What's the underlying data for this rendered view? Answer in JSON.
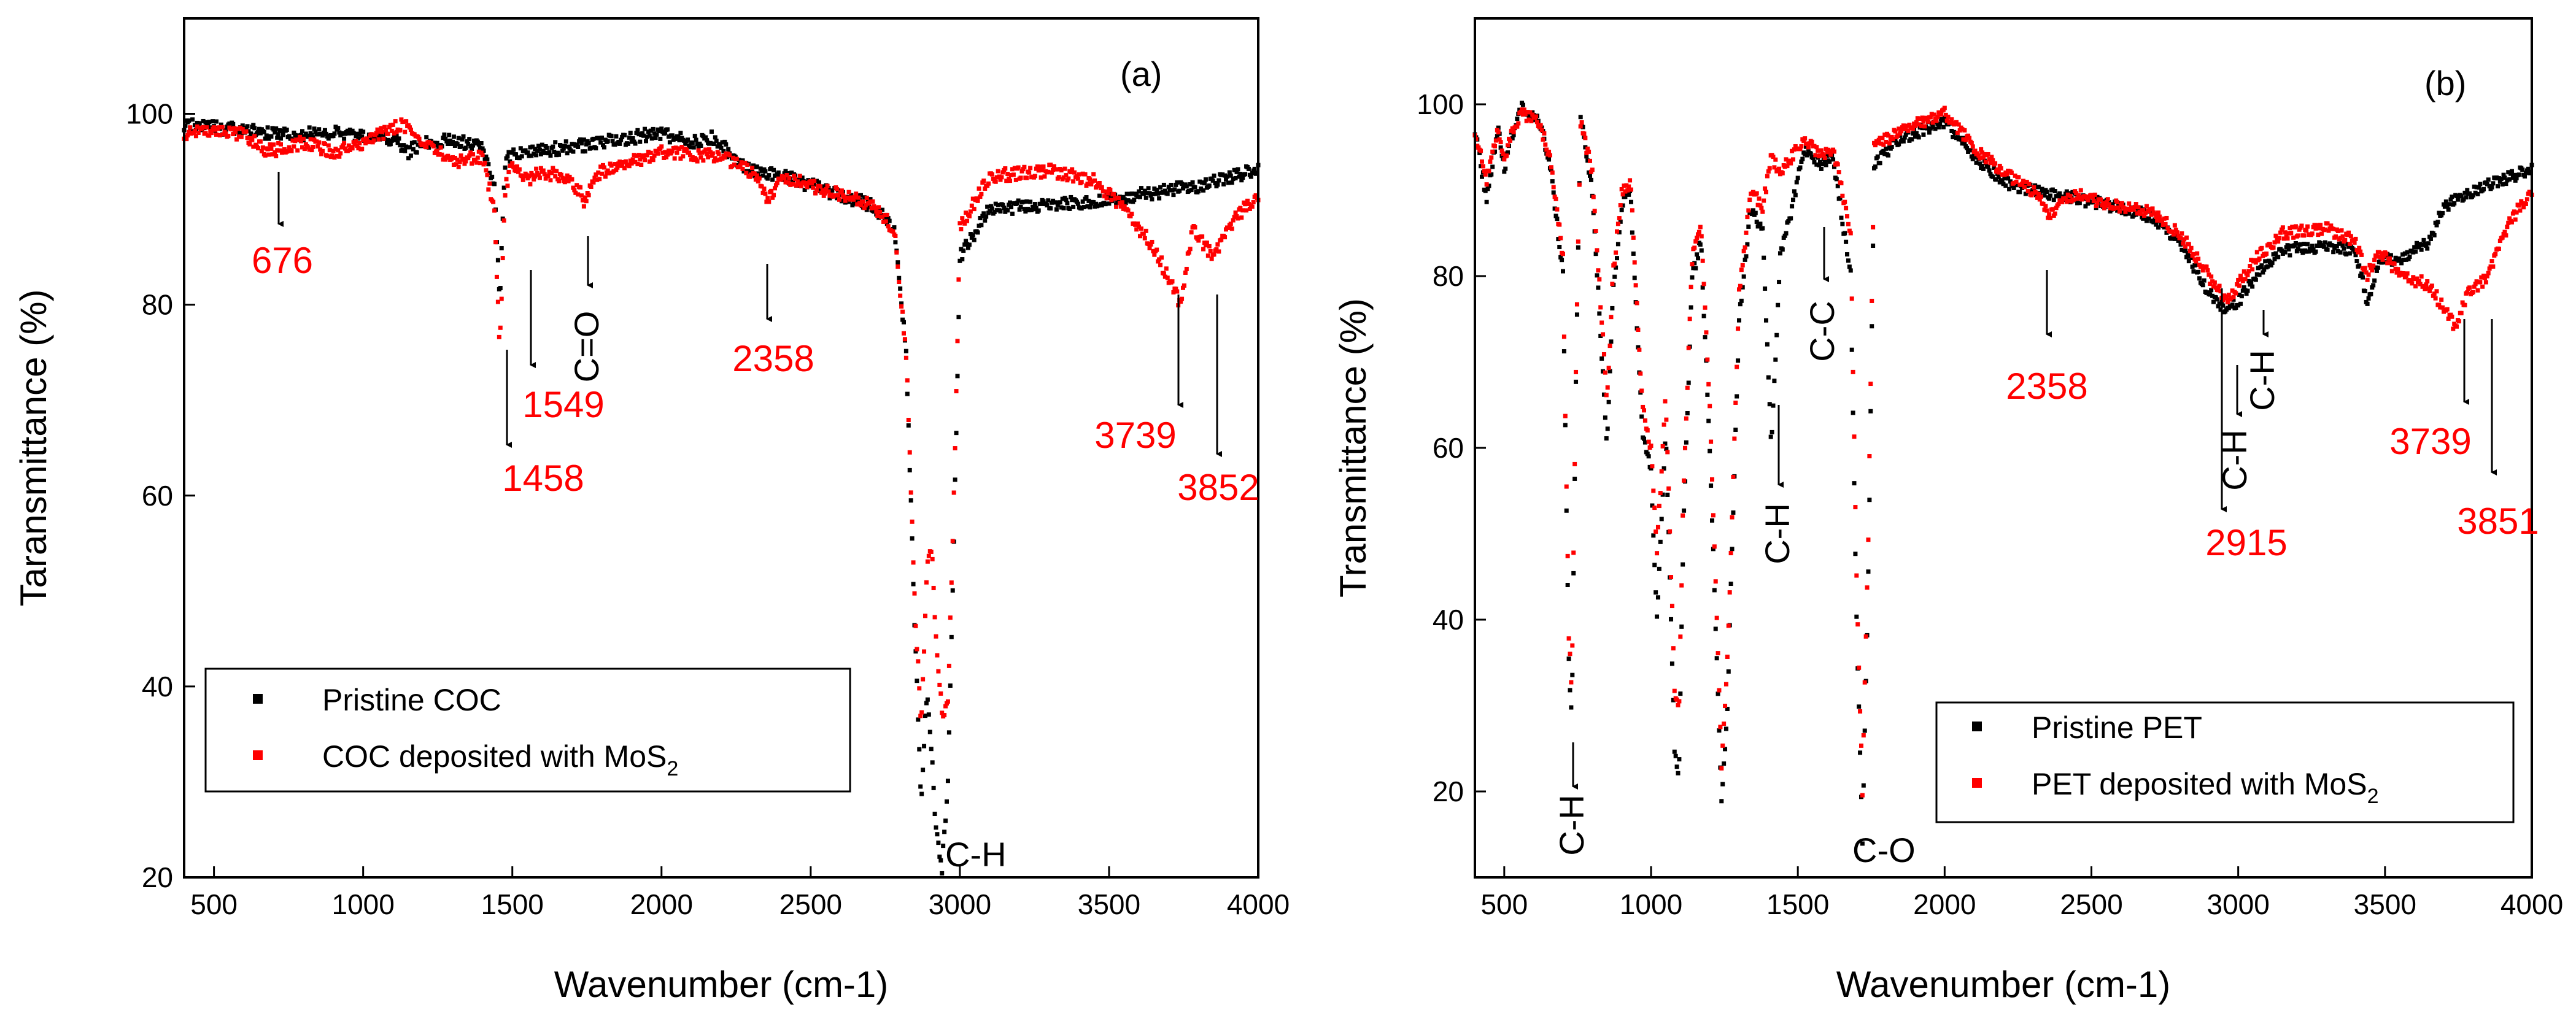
{
  "chart_data": [
    {
      "type": "scatter",
      "panel_label": "(a)",
      "xlabel": "Wavenumber (cm-1)",
      "ylabel": "Taransmittance (%)",
      "xlim": [
        400,
        4000
      ],
      "ylim": [
        20,
        110
      ],
      "xticks": [
        500,
        1000,
        1500,
        2000,
        2500,
        3000,
        3500,
        4000
      ],
      "yticks": [
        20,
        40,
        60,
        80,
        100
      ],
      "legend_position": "bottom-left",
      "series": [
        {
          "name": "Pristine COC",
          "color": "#000000",
          "anchors": [
            [
              400,
              98.8
            ],
            [
              600,
              98.3
            ],
            [
              700,
              97.8
            ],
            [
              900,
              98
            ],
            [
              1000,
              97.5
            ],
            [
              1100,
              97.3
            ],
            [
              1150,
              96
            ],
            [
              1200,
              97
            ],
            [
              1300,
              97.2
            ],
            [
              1400,
              96.5
            ],
            [
              1440,
              92
            ],
            [
              1458,
              80
            ],
            [
              1475,
              95
            ],
            [
              1500,
              96
            ],
            [
              1700,
              96.5
            ],
            [
              1800,
              97
            ],
            [
              2000,
              98
            ],
            [
              2100,
              97
            ],
            [
              2170,
              97.5
            ],
            [
              2300,
              94
            ],
            [
              2400,
              93.5
            ],
            [
              2500,
              92.5
            ],
            [
              2600,
              91.5
            ],
            [
              2700,
              90.5
            ],
            [
              2780,
              88
            ],
            [
              2820,
              75
            ],
            [
              2850,
              45
            ],
            [
              2870,
              28
            ],
            [
              2890,
              40
            ],
            [
              2905,
              33
            ],
            [
              2920,
              25
            ],
            [
              2940,
              21
            ],
            [
              2960,
              30
            ],
            [
              2980,
              55
            ],
            [
              3000,
              85
            ],
            [
              3100,
              90
            ],
            [
              3300,
              90.5
            ],
            [
              3500,
              91
            ],
            [
              3700,
              92
            ],
            [
              3800,
              92.5
            ],
            [
              4000,
              94.2
            ]
          ]
        },
        {
          "name": "COC deposited with MoS",
          "name_sub": "2",
          "color": "#ff0000",
          "anchors": [
            [
              400,
              98
            ],
            [
              600,
              98
            ],
            [
              676,
              96
            ],
            [
              800,
              97
            ],
            [
              900,
              96
            ],
            [
              1000,
              97
            ],
            [
              1100,
              98.5
            ],
            [
              1130,
              99
            ],
            [
              1200,
              97
            ],
            [
              1300,
              95
            ],
            [
              1400,
              95.5
            ],
            [
              1440,
              90
            ],
            [
              1458,
              75
            ],
            [
              1475,
              92
            ],
            [
              1500,
              95
            ],
            [
              1549,
              93
            ],
            [
              1600,
              94
            ],
            [
              1700,
              93
            ],
            [
              1740,
              91
            ],
            [
              1800,
              94
            ],
            [
              2000,
              96
            ],
            [
              2200,
              95.5
            ],
            [
              2300,
              94
            ],
            [
              2358,
              91
            ],
            [
              2400,
              93.5
            ],
            [
              2500,
              92.5
            ],
            [
              2600,
              91.5
            ],
            [
              2700,
              90.5
            ],
            [
              2780,
              88
            ],
            [
              2820,
              75
            ],
            [
              2850,
              48
            ],
            [
              2870,
              36
            ],
            [
              2890,
              52
            ],
            [
              2905,
              55
            ],
            [
              2920,
              45
            ],
            [
              2940,
              37
            ],
            [
              2960,
              38
            ],
            [
              2980,
              60
            ],
            [
              3000,
              88
            ],
            [
              3100,
              93.5
            ],
            [
              3300,
              94
            ],
            [
              3450,
              93
            ],
            [
              3550,
              90
            ],
            [
              3650,
              86
            ],
            [
              3739,
              80
            ],
            [
              3780,
              88
            ],
            [
              3852,
              85
            ],
            [
              3920,
              89
            ],
            [
              4000,
              91.5
            ]
          ]
        }
      ],
      "annotations": [
        {
          "text": "676",
          "x": 676,
          "color": "#ff0000"
        },
        {
          "text": "1458",
          "x": 1458,
          "color": "#ff0000"
        },
        {
          "text": "1549",
          "x": 1549,
          "color": "#ff0000"
        },
        {
          "text": "C=O",
          "x": 1740,
          "color": "#000000",
          "rotated": true
        },
        {
          "text": "2358",
          "x": 2358,
          "color": "#ff0000"
        },
        {
          "text": "C-H",
          "x": 2960,
          "color": "#000000"
        },
        {
          "text": "3739",
          "x": 3739,
          "color": "#ff0000"
        },
        {
          "text": "3852",
          "x": 3852,
          "color": "#ff0000"
        }
      ]
    },
    {
      "type": "scatter",
      "panel_label": "(b)",
      "xlabel": "Wavenumber (cm-1)",
      "ylabel": "Transmittance (%)",
      "xlim": [
        400,
        4000
      ],
      "ylim": [
        10,
        110
      ],
      "xticks": [
        500,
        1000,
        1500,
        2000,
        2500,
        3000,
        3500,
        4000
      ],
      "yticks": [
        20,
        40,
        60,
        80,
        100
      ],
      "legend_position": "bottom-right",
      "series": [
        {
          "name": "Pristine PET",
          "color": "#000000",
          "anchors": [
            [
              400,
              97
            ],
            [
              440,
              89
            ],
            [
              480,
              97
            ],
            [
              500,
              92
            ],
            [
              520,
              96
            ],
            [
              560,
              99.5
            ],
            [
              620,
              98
            ],
            [
              660,
              92
            ],
            [
              700,
              80
            ],
            [
              720,
              35
            ],
            [
              730,
              28
            ],
            [
              745,
              70
            ],
            [
              760,
              99
            ],
            [
              800,
              90
            ],
            [
              850,
              60
            ],
            [
              870,
              78
            ],
            [
              900,
              88
            ],
            [
              930,
              90
            ],
            [
              950,
              75
            ],
            [
              970,
              62
            ],
            [
              1000,
              57
            ],
            [
              1020,
              40
            ],
            [
              1050,
              62
            ],
            [
              1080,
              25
            ],
            [
              1095,
              22
            ],
            [
              1110,
              50
            ],
            [
              1140,
              80
            ],
            [
              1170,
              84
            ],
            [
              1200,
              60
            ],
            [
              1240,
              19
            ],
            [
              1260,
              30
            ],
            [
              1300,
              75
            ],
            [
              1340,
              88
            ],
            [
              1380,
              85
            ],
            [
              1410,
              60
            ],
            [
              1440,
              82
            ],
            [
              1480,
              88
            ],
            [
              1520,
              95
            ],
            [
              1580,
              93
            ],
            [
              1620,
              94
            ],
            [
              1680,
              80
            ],
            [
              1700,
              40
            ],
            [
              1720,
              14
            ],
            [
              1740,
              45
            ],
            [
              1760,
              93
            ],
            [
              1850,
              96
            ],
            [
              2000,
              98
            ],
            [
              2050,
              96
            ],
            [
              2100,
              94
            ],
            [
              2200,
              91
            ],
            [
              2300,
              90
            ],
            [
              2358,
              89.5
            ],
            [
              2450,
              89
            ],
            [
              2600,
              88
            ],
            [
              2700,
              87
            ],
            [
              2800,
              84
            ],
            [
              2900,
              78
            ],
            [
              2960,
              76
            ],
            [
              3000,
              77
            ],
            [
              3060,
              80
            ],
            [
              3150,
              83
            ],
            [
              3300,
              83.5
            ],
            [
              3400,
              83
            ],
            [
              3440,
              77
            ],
            [
              3480,
              82
            ],
            [
              3550,
              82
            ],
            [
              3650,
              84
            ],
            [
              3700,
              88
            ],
            [
              3800,
              90
            ],
            [
              4000,
              92.5
            ]
          ]
        },
        {
          "name": "PET deposited with MoS",
          "name_sub": "2",
          "color": "#ff0000",
          "anchors": [
            [
              400,
              97
            ],
            [
              440,
              91
            ],
            [
              480,
              97
            ],
            [
              500,
              93
            ],
            [
              520,
              96
            ],
            [
              560,
              99
            ],
            [
              620,
              98
            ],
            [
              660,
              93
            ],
            [
              700,
              82
            ],
            [
              720,
              38
            ],
            [
              730,
              32
            ],
            [
              745,
              72
            ],
            [
              760,
              98
            ],
            [
              800,
              92
            ],
            [
              850,
              65
            ],
            [
              870,
              80
            ],
            [
              900,
              90
            ],
            [
              930,
              91
            ],
            [
              950,
              78
            ],
            [
              970,
              65
            ],
            [
              1000,
              60
            ],
            [
              1020,
              48
            ],
            [
              1050,
              66
            ],
            [
              1080,
              32
            ],
            [
              1095,
              29
            ],
            [
              1110,
              55
            ],
            [
              1140,
              82
            ],
            [
              1170,
              86
            ],
            [
              1200,
              65
            ],
            [
              1240,
              23
            ],
            [
              1260,
              35
            ],
            [
              1300,
              78
            ],
            [
              1340,
              90
            ],
            [
              1380,
              88
            ],
            [
              1410,
              94
            ],
            [
              1440,
              92
            ],
            [
              1480,
              94
            ],
            [
              1520,
              96
            ],
            [
              1580,
              94
            ],
            [
              1620,
              95
            ],
            [
              1680,
              85
            ],
            [
              1700,
              45
            ],
            [
              1720,
              20
            ],
            [
              1740,
              50
            ],
            [
              1760,
              95
            ],
            [
              1850,
              97
            ],
            [
              2000,
              99
            ],
            [
              2050,
              97
            ],
            [
              2100,
              95
            ],
            [
              2200,
              92
            ],
            [
              2300,
              90
            ],
            [
              2358,
              87
            ],
            [
              2400,
              89
            ],
            [
              2450,
              89.5
            ],
            [
              2600,
              88
            ],
            [
              2700,
              87.5
            ],
            [
              2800,
              85
            ],
            [
              2900,
              80
            ],
            [
              2960,
              77
            ],
            [
              3000,
              79
            ],
            [
              3060,
              82
            ],
            [
              3150,
              85
            ],
            [
              3300,
              85.5
            ],
            [
              3400,
              84
            ],
            [
              3440,
              80
            ],
            [
              3480,
              83
            ],
            [
              3550,
              80
            ],
            [
              3650,
              79
            ],
            [
              3739,
              74
            ],
            [
              3780,
              78
            ],
            [
              3851,
              80
            ],
            [
              3920,
              86
            ],
            [
              4000,
              90
            ]
          ]
        }
      ],
      "annotations": [
        {
          "text": "C-H",
          "x": 730,
          "color": "#000000",
          "rotated": true
        },
        {
          "text": "C-H",
          "x": 1420,
          "color": "#000000",
          "rotated": true
        },
        {
          "text": "C-C",
          "x": 1580,
          "color": "#000000",
          "rotated": true
        },
        {
          "text": "C-O",
          "x": 1720,
          "color": "#000000"
        },
        {
          "text": "2358",
          "x": 2358,
          "color": "#ff0000"
        },
        {
          "text": "2915",
          "x": 2915,
          "color": "#ff0000"
        },
        {
          "text": "C-H",
          "x": 2970,
          "color": "#000000",
          "rotated": true
        },
        {
          "text": "C-H",
          "x": 3060,
          "color": "#000000",
          "rotated": true
        },
        {
          "text": "3739",
          "x": 3739,
          "color": "#ff0000"
        },
        {
          "text": "3851",
          "x": 3851,
          "color": "#ff0000"
        }
      ]
    }
  ]
}
